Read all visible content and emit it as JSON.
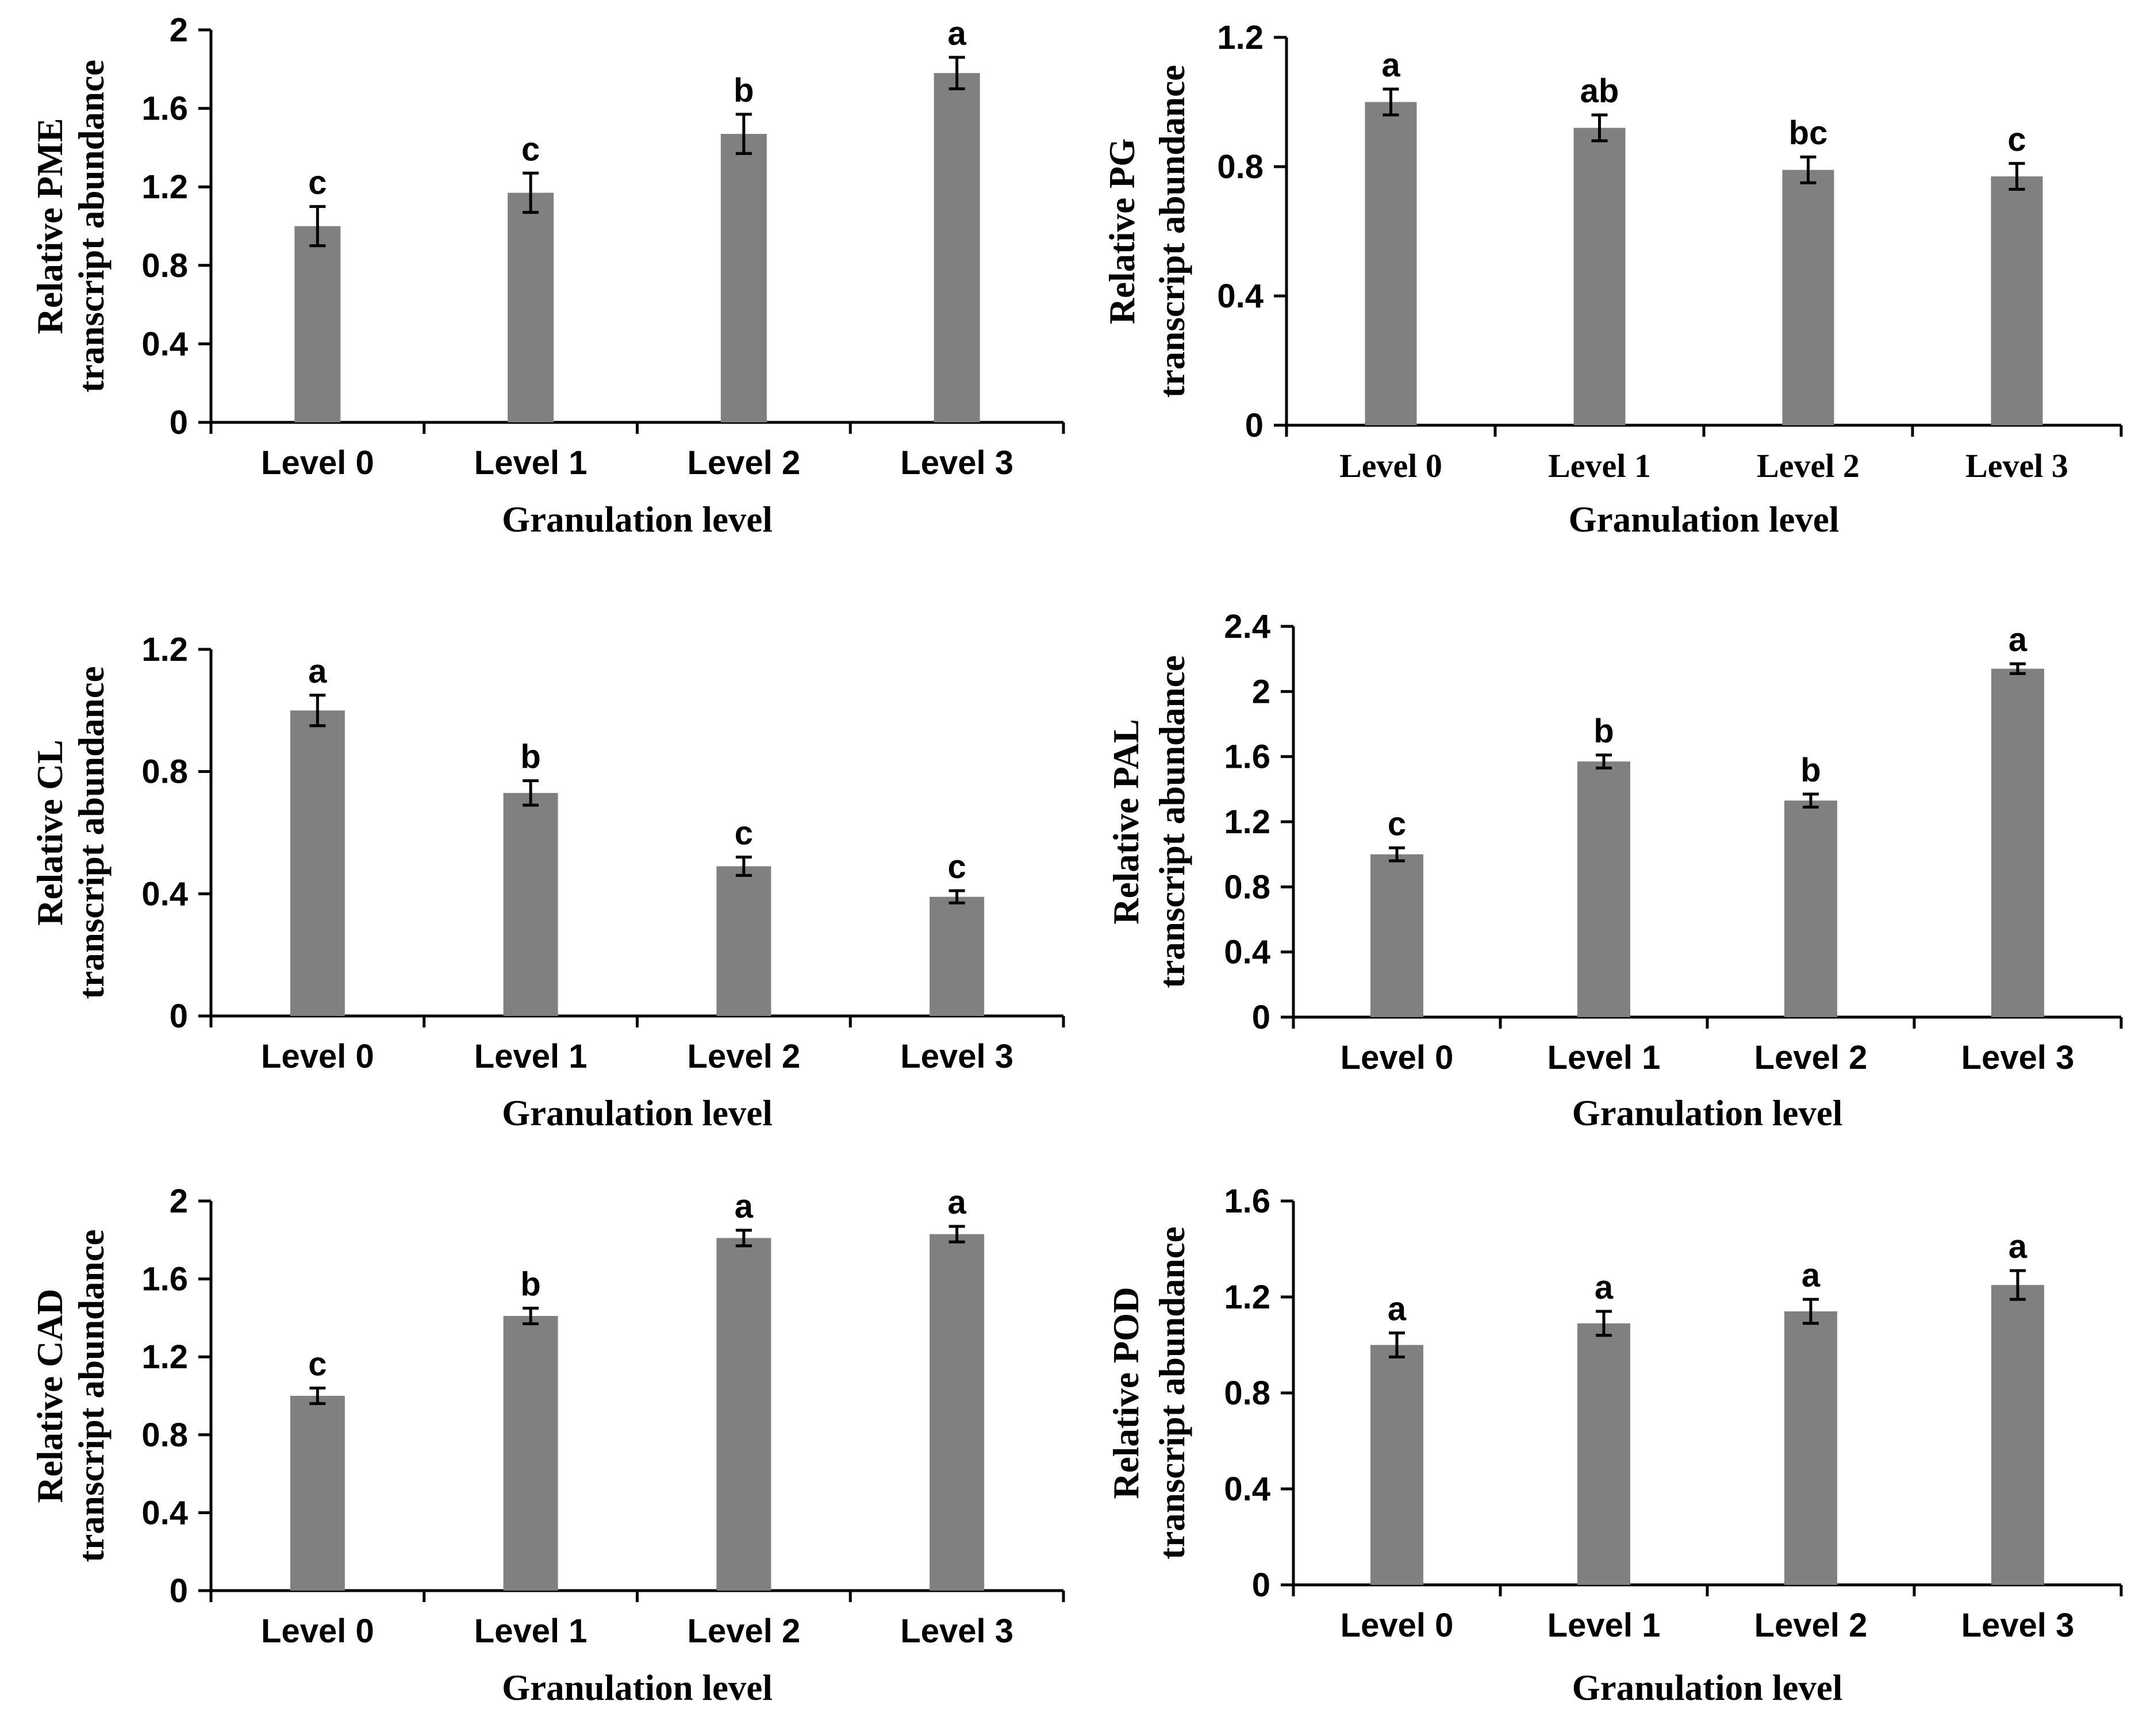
{
  "chart_data": [
    {
      "id": "pme",
      "type": "bar",
      "title": "",
      "ylabel_line1": "Relative PME",
      "ylabel_line2": "transcript abundance",
      "xlabel": "Granulation level",
      "categories": [
        "Level 0",
        "Level 1",
        "Level 2",
        "Level 3"
      ],
      "values": [
        1.0,
        1.17,
        1.47,
        1.78
      ],
      "errors": [
        0.1,
        0.1,
        0.1,
        0.08
      ],
      "significance": [
        "c",
        "c",
        "b",
        "a"
      ],
      "ylim": [
        0,
        2
      ],
      "yticks": [
        0,
        0.4,
        0.8,
        1.2,
        1.6,
        2
      ],
      "ytick_labels": [
        "0",
        "0.4",
        "0.8",
        "1.2",
        "1.6",
        "2"
      ]
    },
    {
      "id": "pg",
      "type": "bar",
      "title": "",
      "ylabel_line1": "Relative PG",
      "ylabel_line2": "transcript abundance",
      "xlabel": "Granulation level",
      "categories": [
        "Level 0",
        "Level 1",
        "Level 2",
        "Level 3"
      ],
      "values": [
        1.0,
        0.92,
        0.79,
        0.77
      ],
      "errors": [
        0.04,
        0.04,
        0.04,
        0.04
      ],
      "significance": [
        "a",
        "ab",
        "bc",
        "c"
      ],
      "ylim": [
        0,
        1.2
      ],
      "yticks": [
        0,
        0.4,
        0.8,
        1.2
      ],
      "ytick_labels": [
        "0",
        "0.4",
        "0.8",
        "1.2"
      ]
    },
    {
      "id": "cl",
      "type": "bar",
      "title": "",
      "ylabel_line1": "Relative CL",
      "ylabel_line2": "transcript abundance",
      "xlabel": "Granulation level",
      "categories": [
        "Level 0",
        "Level 1",
        "Level 2",
        "Level 3"
      ],
      "values": [
        1.0,
        0.73,
        0.49,
        0.39
      ],
      "errors": [
        0.05,
        0.04,
        0.03,
        0.02
      ],
      "significance": [
        "a",
        "b",
        "c",
        "c"
      ],
      "ylim": [
        0,
        1.2
      ],
      "yticks": [
        0,
        0.4,
        0.8,
        1.2
      ],
      "ytick_labels": [
        "0",
        "0.4",
        "0.8",
        "1.2"
      ]
    },
    {
      "id": "pal",
      "type": "bar",
      "title": "",
      "ylabel_line1": "Relative PAL",
      "ylabel_line2": "transcript abundance",
      "xlabel": "Granulation level",
      "categories": [
        "Level 0",
        "Level 1",
        "Level 2",
        "Level 3"
      ],
      "values": [
        1.0,
        1.57,
        1.33,
        2.14
      ],
      "errors": [
        0.04,
        0.04,
        0.04,
        0.03
      ],
      "significance": [
        "c",
        "b",
        "b",
        "a"
      ],
      "ylim": [
        0,
        2.4
      ],
      "yticks": [
        0,
        0.4,
        0.8,
        1.2,
        1.6,
        2,
        2.4
      ],
      "ytick_labels": [
        "0",
        "0.4",
        "0.8",
        "1.2",
        "1.6",
        "2",
        "2.4"
      ]
    },
    {
      "id": "cad",
      "type": "bar",
      "title": "",
      "ylabel_line1": "Relative CAD",
      "ylabel_line2": "transcript abundance",
      "xlabel": "Granulation level",
      "categories": [
        "Level 0",
        "Level 1",
        "Level 2",
        "Level 3"
      ],
      "values": [
        1.0,
        1.41,
        1.81,
        1.83
      ],
      "errors": [
        0.04,
        0.04,
        0.04,
        0.04
      ],
      "significance": [
        "c",
        "b",
        "a",
        "a"
      ],
      "ylim": [
        0,
        2
      ],
      "yticks": [
        0,
        0.4,
        0.8,
        1.2,
        1.6,
        2
      ],
      "ytick_labels": [
        "0",
        "0.4",
        "0.8",
        "1.2",
        "1.6",
        "2"
      ]
    },
    {
      "id": "pod",
      "type": "bar",
      "title": "",
      "ylabel_line1": "Relative POD",
      "ylabel_line2": "transcript abundance",
      "xlabel": "Granulation level",
      "categories": [
        "Level 0",
        "Level 1",
        "Level 2",
        "Level 3"
      ],
      "values": [
        1.0,
        1.09,
        1.14,
        1.25
      ],
      "errors": [
        0.05,
        0.05,
        0.05,
        0.06
      ],
      "significance": [
        "a",
        "a",
        "a",
        "a"
      ],
      "ylim": [
        0,
        1.6
      ],
      "yticks": [
        0,
        0.4,
        0.8,
        1.2,
        1.6
      ],
      "ytick_labels": [
        "0",
        "0.4",
        "0.8",
        "1.2",
        "1.6"
      ]
    }
  ],
  "colors": {
    "bar": "#808080",
    "axis": "#000000",
    "background": "#ffffff"
  }
}
